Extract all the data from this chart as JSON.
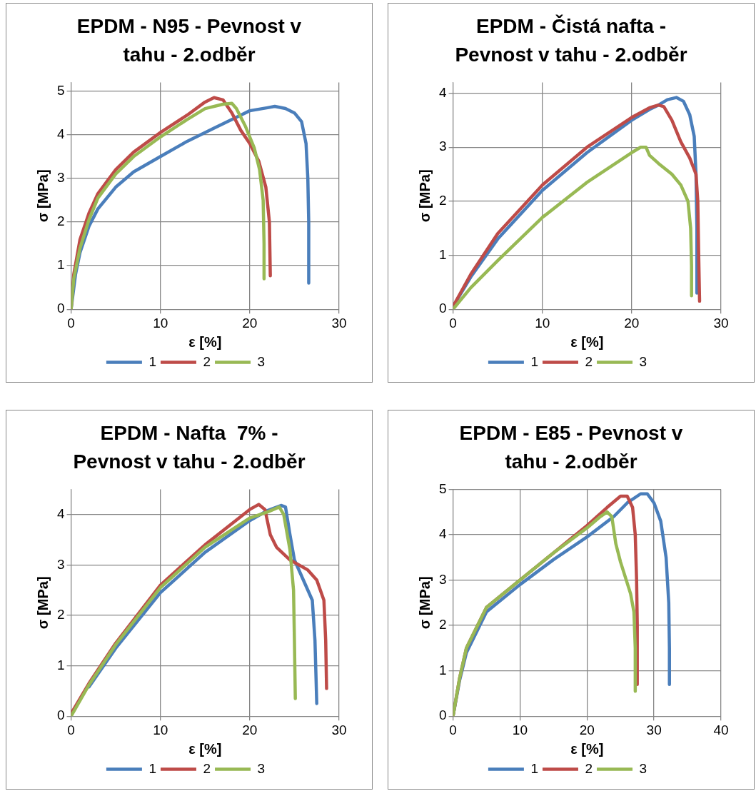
{
  "chart_data": [
    {
      "type": "line",
      "title": "EPDM - N95 - Pevnost v tahu - 2.odběr",
      "xlabel": "ε [%]",
      "ylabel": "σ [MPa]",
      "xlim": [
        0,
        30
      ],
      "xticks": [
        0,
        10,
        20,
        30
      ],
      "ylim": [
        0,
        5.2
      ],
      "yticks": [
        0,
        1,
        2,
        3,
        4,
        5
      ],
      "grid": true,
      "legend": "bottom",
      "marker": "none",
      "line_style": "solid",
      "series": [
        {
          "name": "1",
          "color": "#4a7ebb",
          "x": [
            0,
            0.5,
            1,
            2,
            3,
            5,
            7,
            10,
            13,
            16,
            19,
            20,
            22,
            22.8,
            24,
            25,
            25.8,
            26.3,
            26.5,
            26.6,
            26.6
          ],
          "values": [
            0,
            0.8,
            1.3,
            1.9,
            2.3,
            2.8,
            3.15,
            3.5,
            3.85,
            4.15,
            4.45,
            4.55,
            4.62,
            4.65,
            4.6,
            4.5,
            4.3,
            3.8,
            3,
            2,
            0.6
          ]
        },
        {
          "name": "2",
          "color": "#be4b48",
          "x": [
            0,
            0.3,
            1,
            2,
            3,
            5,
            7,
            10,
            13,
            15,
            16,
            17,
            18,
            19,
            20,
            21,
            21.8,
            22.2,
            22.3
          ],
          "values": [
            0,
            0.8,
            1.6,
            2.2,
            2.65,
            3.2,
            3.6,
            4.05,
            4.45,
            4.75,
            4.85,
            4.8,
            4.5,
            4.1,
            3.8,
            3.4,
            2.8,
            2,
            0.77
          ]
        },
        {
          "name": "3",
          "color": "#98b954",
          "x": [
            0,
            0.3,
            1,
            2,
            3,
            5,
            7,
            10,
            13,
            15,
            17,
            18,
            18.5,
            19.5,
            20.5,
            21.1,
            21.5,
            21.6,
            21.6
          ],
          "values": [
            0,
            0.7,
            1.4,
            2.05,
            2.55,
            3.1,
            3.5,
            3.95,
            4.35,
            4.6,
            4.7,
            4.72,
            4.6,
            4.2,
            3.7,
            3.2,
            2.5,
            1.5,
            0.7
          ]
        }
      ]
    },
    {
      "type": "line",
      "title": "EPDM - Čistá nafta - Pevnost v tahu - 2.odběr",
      "xlabel": "ε [%]",
      "ylabel": "σ [MPa]",
      "xlim": [
        0,
        30
      ],
      "xticks": [
        0,
        10,
        20,
        30
      ],
      "ylim": [
        0,
        4.2
      ],
      "yticks": [
        0,
        1,
        2,
        3,
        4
      ],
      "grid": true,
      "legend": "bottom",
      "marker": "none",
      "line_style": "solid",
      "series": [
        {
          "name": "1",
          "color": "#4a7ebb",
          "x": [
            0,
            2,
            5,
            10,
            15,
            20,
            22,
            23,
            24,
            25,
            25.8,
            26.5,
            27,
            27.2,
            27.3,
            27.3
          ],
          "values": [
            0.05,
            0.6,
            1.3,
            2.2,
            2.9,
            3.5,
            3.7,
            3.78,
            3.88,
            3.92,
            3.85,
            3.6,
            3.2,
            2.5,
            1.5,
            0.3
          ]
        },
        {
          "name": "2",
          "color": "#be4b48",
          "x": [
            0,
            2,
            5,
            10,
            15,
            20,
            22,
            23,
            23.6,
            24.5,
            25.5,
            26.5,
            27.2,
            27.4,
            27.5,
            27.6
          ],
          "values": [
            0.05,
            0.65,
            1.4,
            2.3,
            3,
            3.55,
            3.73,
            3.78,
            3.75,
            3.5,
            3.1,
            2.8,
            2.5,
            2,
            1,
            0.15
          ]
        },
        {
          "name": "3",
          "color": "#98b954",
          "x": [
            0,
            2,
            5,
            10,
            15,
            20,
            21,
            21.6,
            22,
            23,
            24.5,
            25.5,
            26.3,
            26.6,
            26.7,
            26.7
          ],
          "values": [
            0,
            0.4,
            0.9,
            1.7,
            2.35,
            2.9,
            3,
            3,
            2.85,
            2.7,
            2.5,
            2.3,
            2,
            1.5,
            0.8,
            0.25
          ]
        }
      ]
    },
    {
      "type": "line",
      "title": "EPDM - Nafta  7% - Pevnost v tahu - 2.odběr",
      "xlabel": "ε [%]",
      "ylabel": "σ [MPa]",
      "xlim": [
        0,
        30
      ],
      "xticks": [
        0,
        10,
        20,
        30
      ],
      "ylim": [
        0,
        4.5
      ],
      "yticks": [
        0,
        1,
        2,
        3,
        4
      ],
      "grid": true,
      "legend": "bottom",
      "marker": "none",
      "line_style": "solid",
      "series": [
        {
          "name": "1",
          "color": "#4a7ebb",
          "x": [
            2,
            5,
            10,
            15,
            20,
            22,
            23.5,
            24,
            24.5,
            25,
            26,
            27,
            27.3,
            27.5
          ],
          "values": [
            0.58,
            1.35,
            2.45,
            3.25,
            3.88,
            4.08,
            4.18,
            4.15,
            3.6,
            3.1,
            2.7,
            2.3,
            1.5,
            0.25
          ]
        },
        {
          "name": "2",
          "color": "#be4b48",
          "x": [
            0,
            2,
            5,
            10,
            15,
            20,
            21,
            21.7,
            22.3,
            23,
            24.5,
            26.5,
            27.5,
            28.3,
            28.5,
            28.6
          ],
          "values": [
            0.05,
            0.65,
            1.45,
            2.6,
            3.4,
            4.1,
            4.2,
            4.1,
            3.6,
            3.35,
            3.1,
            2.9,
            2.7,
            2.3,
            1.5,
            0.55
          ]
        },
        {
          "name": "3",
          "color": "#98b954",
          "x": [
            0,
            2,
            5,
            10,
            15,
            20,
            22,
            23.3,
            23.8,
            24.5,
            24.9,
            25,
            25.1
          ],
          "values": [
            0,
            0.62,
            1.42,
            2.55,
            3.35,
            3.93,
            4.05,
            4.15,
            4,
            3.3,
            2.5,
            1.5,
            0.35
          ]
        }
      ]
    },
    {
      "type": "line",
      "title": "EPDM - E85 - Pevnost v tahu - 2.odběr",
      "xlabel": "ε [%]",
      "ylabel": "σ [MPa]",
      "xlim": [
        0,
        40
      ],
      "xticks": [
        0,
        10,
        20,
        30,
        40
      ],
      "ylim": [
        0,
        5
      ],
      "yticks": [
        0,
        1,
        2,
        3,
        4,
        5
      ],
      "grid": true,
      "legend": "bottom",
      "marker": "none",
      "line_style": "solid",
      "series": [
        {
          "name": "1",
          "color": "#4a7ebb",
          "x": [
            0,
            1,
            2,
            5,
            10,
            15,
            20,
            24,
            26,
            28,
            29,
            30,
            31,
            31.8,
            32.2,
            32.3,
            32.3
          ],
          "values": [
            0,
            0.8,
            1.4,
            2.3,
            2.9,
            3.45,
            3.95,
            4.4,
            4.7,
            4.9,
            4.9,
            4.7,
            4.3,
            3.5,
            2.5,
            1.5,
            0.7
          ]
        },
        {
          "name": "2",
          "color": "#be4b48",
          "x": [
            0,
            1,
            2,
            5,
            10,
            15,
            20,
            23,
            25,
            26,
            26.8,
            27.2,
            27.4,
            27.5,
            27.5
          ],
          "values": [
            0,
            0.85,
            1.5,
            2.4,
            3,
            3.6,
            4.2,
            4.6,
            4.85,
            4.85,
            4.6,
            4,
            3,
            2,
            0.7
          ]
        },
        {
          "name": "3",
          "color": "#98b954",
          "x": [
            0,
            1,
            2,
            5,
            10,
            15,
            20,
            22,
            23,
            23.7,
            24.3,
            25,
            26.5,
            27,
            27.2,
            27.2
          ],
          "values": [
            0,
            0.85,
            1.5,
            2.4,
            3,
            3.6,
            4.15,
            4.4,
            4.5,
            4.4,
            3.8,
            3.4,
            2.7,
            2.3,
            1.5,
            0.55
          ]
        }
      ]
    }
  ]
}
